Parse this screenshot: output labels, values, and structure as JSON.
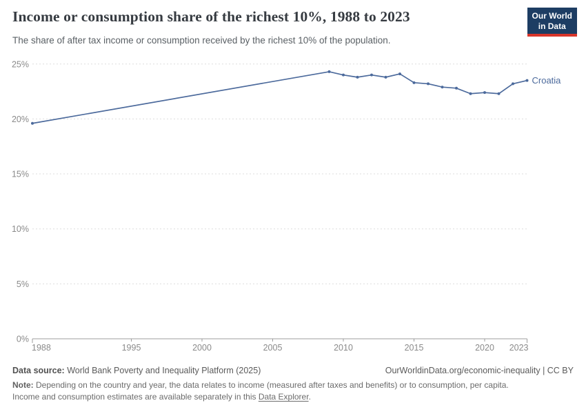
{
  "header": {
    "title": "Income or consumption share of the richest 10%, 1988 to 2023",
    "subtitle": "The share of after tax income or consumption received by the richest 10% of the population.",
    "logo": {
      "line1": "Our World",
      "line2": "in Data",
      "bg_color": "#1d3d63",
      "accent_color": "#d8352a"
    }
  },
  "chart_data": {
    "type": "line",
    "title": "Income or consumption share of the richest 10%, 1988 to 2023",
    "xlabel": "",
    "ylabel": "",
    "xlim": [
      1988,
      2023
    ],
    "ylim": [
      0,
      25
    ],
    "xticks": [
      1988,
      1995,
      2000,
      2005,
      2010,
      2015,
      2020,
      2023
    ],
    "yticks": [
      0,
      5,
      10,
      15,
      20,
      25
    ],
    "y_tick_suffix": "%",
    "grid": "horizontal-dashed",
    "legend_position": "end-of-line-label",
    "series": [
      {
        "name": "Croatia",
        "color": "#4c6a9c",
        "points": [
          [
            1988,
            19.6
          ],
          [
            2009,
            24.3
          ],
          [
            2010,
            24.0
          ],
          [
            2011,
            23.8
          ],
          [
            2012,
            24.0
          ],
          [
            2013,
            23.8
          ],
          [
            2014,
            24.1
          ],
          [
            2015,
            23.3
          ],
          [
            2016,
            23.2
          ],
          [
            2017,
            22.9
          ],
          [
            2018,
            22.8
          ],
          [
            2019,
            22.3
          ],
          [
            2020,
            22.4
          ],
          [
            2021,
            22.3
          ],
          [
            2022,
            23.2
          ],
          [
            2023,
            23.5
          ]
        ]
      }
    ]
  },
  "footer": {
    "datasource_label": "Data source:",
    "datasource_value": " World Bank Poverty and Inequality Platform (2025)",
    "link": "OurWorldinData.org/economic-inequality | CC BY",
    "note_label": "Note:",
    "note_line1": " Depending on the country and year, the data relates to income (measured after taxes and benefits) or to consumption, per capita.",
    "note_line2_before_link": "Income and consumption estimates are available separately in this ",
    "note_link": "Data Explorer",
    "note_suffix": "."
  }
}
